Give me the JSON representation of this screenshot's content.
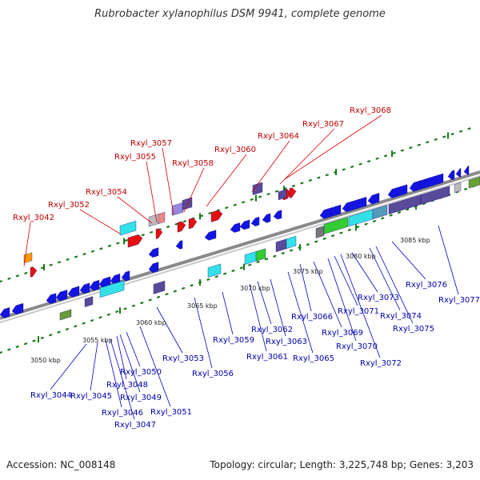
{
  "title": "Rubrobacter xylanophilus DSM 9941, complete genome",
  "footer": {
    "accession": "Accession: NC_008148",
    "topology": "Topology: circular; Length: 3,225,748 bp; Genes: 3,203"
  },
  "axis_ticks": [
    "3050 kbp",
    "3055 kbp",
    "3060 kbp",
    "3065 kbp",
    "3070 kbp",
    "3075 kbp",
    "3080 kbp",
    "3085 kbp"
  ],
  "labels_top": [
    "Rxyl_3042",
    "Rxyl_3052",
    "Rxyl_3054",
    "Rxyl_3055",
    "Rxyl_3057",
    "Rxyl_3058",
    "Rxyl_3060",
    "Rxyl_3064",
    "Rxyl_3067",
    "Rxyl_3068"
  ],
  "labels_bottom": [
    "Rxyl_3044",
    "Rxyl_3045",
    "Rxyl_3046",
    "Rxyl_3047",
    "Rxyl_3048",
    "Rxyl_3049",
    "Rxyl_3050",
    "Rxyl_3051",
    "Rxyl_3053",
    "Rxyl_3056",
    "Rxyl_3059",
    "Rxyl_3061",
    "Rxyl_3062",
    "Rxyl_3063",
    "Rxyl_3065",
    "Rxyl_3066",
    "Rxyl_3069",
    "Rxyl_3070",
    "Rxyl_3071",
    "Rxyl_3072",
    "Rxyl_3073",
    "Rxyl_3074",
    "Rxyl_3075",
    "Rxyl_3076",
    "Rxyl_3077"
  ],
  "colors": {
    "backbone": "#8a8a8a",
    "forward_gene": "#e41010",
    "reverse_gene": "#1414e0",
    "label_top": "#c00000",
    "label_bottom": "#0000aa",
    "tick": "#1a7a1a"
  }
}
